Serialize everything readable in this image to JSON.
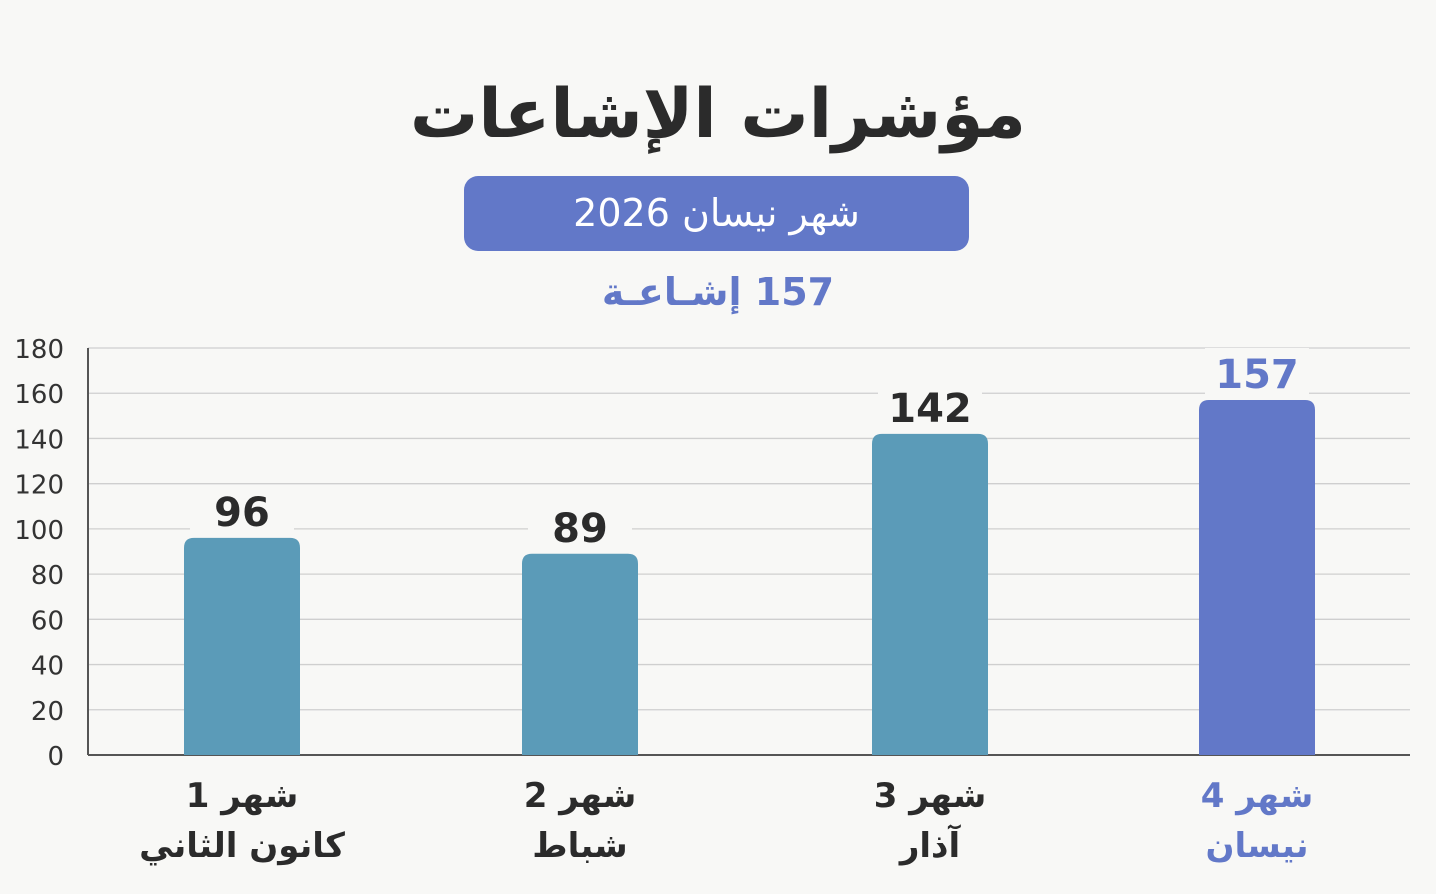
{
  "title": "مؤشرات الإشاعات",
  "subtitle": "شهر نيسان 2026",
  "total_label": "157 إشـاعـة",
  "colors": {
    "bar_default": "#5b9bb8",
    "bar_highlight": "#6278c8",
    "text_dark": "#2b2b2b",
    "accent": "#6278c8"
  },
  "chart_data": {
    "type": "bar",
    "categories": [
      {
        "line1": "شهر 1",
        "line2": "كانون الثاني"
      },
      {
        "line1": "شهر 2",
        "line2": "شباط"
      },
      {
        "line1": "شهر 3",
        "line2": "آذار"
      },
      {
        "line1": "شهر 4",
        "line2": "نيسان"
      }
    ],
    "values": [
      96,
      89,
      142,
      157
    ],
    "highlight_index": 3,
    "ylim": [
      0,
      180
    ],
    "yticks": [
      0,
      20,
      40,
      60,
      80,
      100,
      120,
      140,
      160,
      180
    ],
    "grid": true
  }
}
